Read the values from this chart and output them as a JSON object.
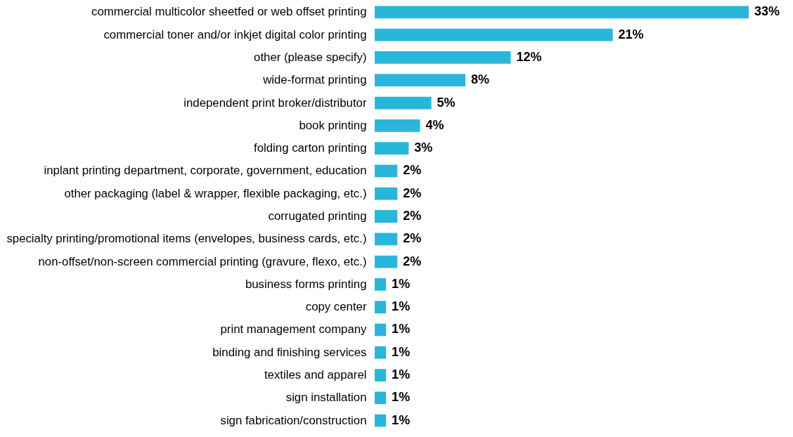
{
  "chart_data": {
    "type": "bar",
    "orientation": "horizontal",
    "tick_labels": "y",
    "categories": [
      "commercial multicolor sheetfed or web offset printing",
      "commercial  toner and/or inkjet digital color printing",
      "other (please specify)",
      "wide-format printing",
      "independent print broker/distributor",
      "book printing",
      "folding carton printing",
      "inplant printing department, corporate, government, education",
      "other packaging (label & wrapper, flexible packaging, etc.)",
      "corrugated printing",
      "specialty printing/promotional items (envelopes, business cards, etc.)",
      "non-offset/non-screen commercial printing (gravure, flexo, etc.)",
      "business forms printing",
      "copy center",
      "print management company",
      "binding and finishing services",
      "textiles and apparel",
      "sign installation",
      "sign fabrication/construction"
    ],
    "values": [
      33,
      21,
      12,
      8,
      5,
      4,
      3,
      2,
      2,
      2,
      2,
      2,
      1,
      1,
      1,
      1,
      1,
      1,
      1
    ],
    "value_labels": [
      "33%",
      "21%",
      "12%",
      "8%",
      "5%",
      "4%",
      "3%",
      "2%",
      "2%",
      "2%",
      "2%",
      "2%",
      "1%",
      "1%",
      "1%",
      "1%",
      "1%",
      "1%",
      "1%"
    ],
    "color": "#29b6db"
  }
}
